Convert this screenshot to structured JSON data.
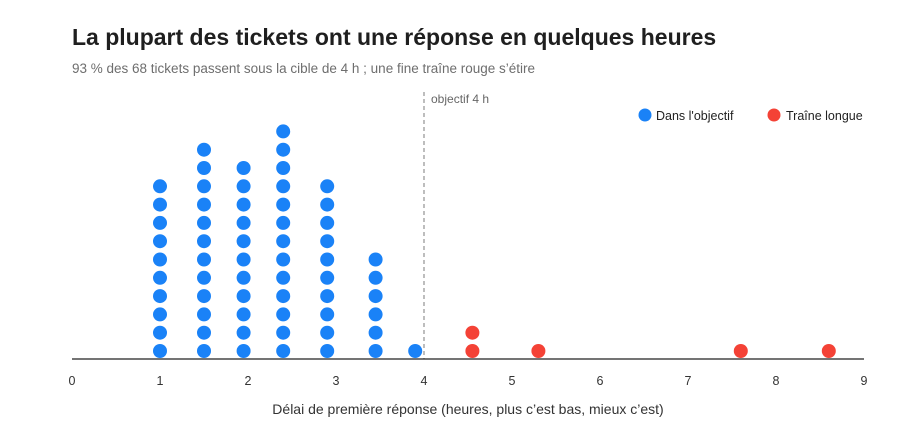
{
  "chart_data": {
    "type": "dot",
    "title": "La plupart des tickets ont une réponse en quelques heures",
    "subtitle": "93 % des 68 tickets passent sous la cible de 4 h ; une fine traîne rouge s’étire",
    "xlabel": "Délai de première réponse (heures, plus c’est bas, mieux c’est)",
    "xlim": [
      0,
      9
    ],
    "xticks": [
      "0",
      "1",
      "2",
      "3",
      "4",
      "5",
      "6",
      "7",
      "8",
      "9"
    ],
    "grid": false,
    "legend_position": "top-right",
    "target": {
      "value": 4,
      "label": "objectif 4 h"
    },
    "series": [
      {
        "name": "Dans l'objectif",
        "color": "#1a82f7",
        "points": [
          {
            "x": 1.0,
            "count": 10
          },
          {
            "x": 1.5,
            "count": 12
          },
          {
            "x": 1.95,
            "count": 11
          },
          {
            "x": 2.4,
            "count": 13
          },
          {
            "x": 2.9,
            "count": 10
          },
          {
            "x": 3.45,
            "count": 6
          },
          {
            "x": 3.9,
            "count": 1
          }
        ]
      },
      {
        "name": "Traîne longue",
        "color": "#f44236",
        "points": [
          {
            "x": 4.55,
            "count": 2
          },
          {
            "x": 5.3,
            "count": 1
          },
          {
            "x": 7.6,
            "count": 1
          },
          {
            "x": 8.6,
            "count": 1
          }
        ]
      }
    ]
  }
}
